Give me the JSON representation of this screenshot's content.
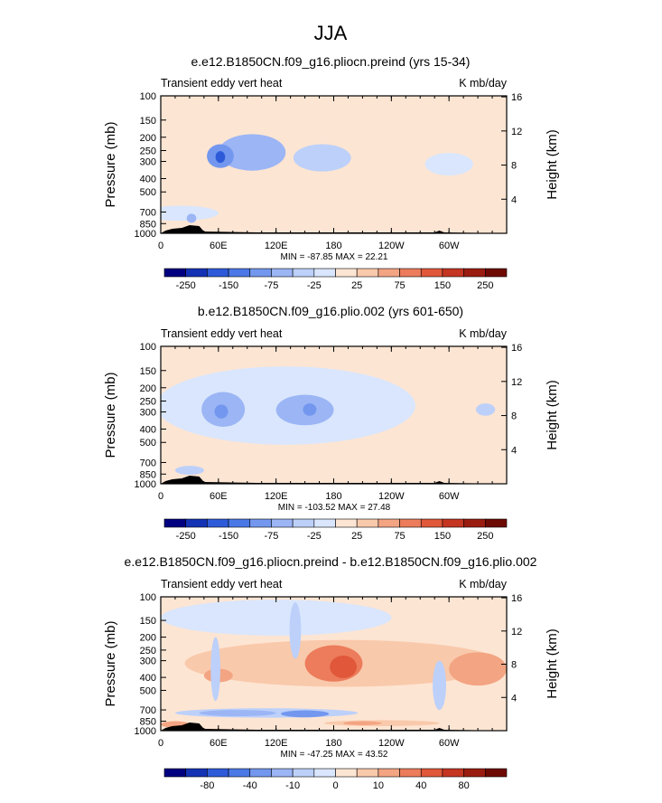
{
  "figure": {
    "title": "JJA"
  },
  "chart_data": [
    {
      "type": "heatmap",
      "title": "e.e12.B1850CN.f09_g16.pliocn.preind (yrs 15-34)",
      "subtitle_left": "Transient eddy vert heat",
      "subtitle_right": "K mb/day",
      "ylabel": "Pressure (mb)",
      "ylabel_right": "Height (km)",
      "x_ticks": [
        "0",
        "60E",
        "120E",
        "180",
        "120W",
        "60W"
      ],
      "y_ticks": [
        "100",
        "150",
        "200",
        "250",
        "300",
        "400",
        "500",
        "700",
        "850",
        "1000"
      ],
      "y_right_ticks": [
        "16",
        "12",
        "8",
        "4"
      ],
      "ylim": [
        1000,
        100
      ],
      "xlim": [
        0,
        360
      ],
      "stats": "MIN = -87.85   MAX =  22.21",
      "colorbar_labels": [
        "-250",
        "-150",
        "-75",
        "-25",
        "25",
        "75",
        "150",
        "250"
      ],
      "colorbar_colors": [
        "#000080",
        "#1432b4",
        "#2d5ad8",
        "#4a78e6",
        "#7397ee",
        "#9bb5f5",
        "#bcd0fa",
        "#d9e6fd",
        "#fde5d3",
        "#f9c9ab",
        "#f3a482",
        "#ec7c5b",
        "#e0573a",
        "#c43522",
        "#9a1c10",
        "#6e0a04"
      ],
      "blobs": [
        {
          "lon": 20,
          "lon_w": 80,
          "p": 720,
          "p_h": 180,
          "level": -1
        },
        {
          "lon": 95,
          "lon_w": 70,
          "p": 270,
          "p_h": 160,
          "level": -3
        },
        {
          "lon": 62,
          "lon_w": 28,
          "p": 280,
          "p_h": 110,
          "level": -4
        },
        {
          "lon": 62,
          "lon_w": 10,
          "p": 280,
          "p_h": 55,
          "level": -6
        },
        {
          "lon": 168,
          "lon_w": 60,
          "p": 290,
          "p_h": 130,
          "level": -2
        },
        {
          "lon": 300,
          "lon_w": 50,
          "p": 320,
          "p_h": 120,
          "level": -1
        },
        {
          "lon": 32,
          "lon_w": 10,
          "p": 780,
          "p_h": 120,
          "level": -3
        }
      ],
      "pos_blobs": [
        {
          "lon": 270,
          "lon_w": 180,
          "p": 580,
          "p_h": 300,
          "level": 1
        },
        {
          "lon": 200,
          "lon_w": 100,
          "p": 880,
          "p_h": 80,
          "level": 1
        }
      ],
      "background_level": 1
    },
    {
      "type": "heatmap",
      "title": "b.e12.B1850CN.f09_g16.plio.002 (yrs 601-650)",
      "subtitle_left": "Transient eddy vert heat",
      "subtitle_right": "K mb/day",
      "ylabel": "Pressure (mb)",
      "ylabel_right": "Height (km)",
      "x_ticks": [
        "0",
        "60E",
        "120E",
        "180",
        "120W",
        "60W"
      ],
      "y_ticks": [
        "100",
        "150",
        "200",
        "250",
        "300",
        "400",
        "500",
        "700",
        "850",
        "1000"
      ],
      "y_right_ticks": [
        "16",
        "12",
        "8",
        "4"
      ],
      "ylim": [
        1000,
        100
      ],
      "xlim": [
        0,
        360
      ],
      "stats": "MIN = -103.52   MAX =  27.48",
      "colorbar_labels": [
        "-250",
        "-150",
        "-75",
        "-25",
        "25",
        "75",
        "150",
        "250"
      ],
      "colorbar_colors": [
        "#000080",
        "#1432b4",
        "#2d5ad8",
        "#4a78e6",
        "#7397ee",
        "#9bb5f5",
        "#bcd0fa",
        "#d9e6fd",
        "#fde5d3",
        "#f9c9ab",
        "#f3a482",
        "#ec7c5b",
        "#e0573a",
        "#c43522",
        "#9a1c10",
        "#6e0a04"
      ],
      "blobs": [
        {
          "lon": 130,
          "lon_w": 270,
          "p": 330,
          "p_h": 380,
          "level": -1
        },
        {
          "lon": 65,
          "lon_w": 45,
          "p": 300,
          "p_h": 170,
          "level": -3
        },
        {
          "lon": 150,
          "lon_w": 60,
          "p": 300,
          "p_h": 150,
          "level": -3
        },
        {
          "lon": 63,
          "lon_w": 14,
          "p": 300,
          "p_h": 70,
          "level": -4
        },
        {
          "lon": 155,
          "lon_w": 14,
          "p": 290,
          "p_h": 60,
          "level": -4
        },
        {
          "lon": 30,
          "lon_w": 30,
          "p": 800,
          "p_h": 120,
          "level": -2
        },
        {
          "lon": 338,
          "lon_w": 20,
          "p": 290,
          "p_h": 60,
          "level": -2
        }
      ],
      "pos_blobs": [],
      "background_level": 1
    },
    {
      "type": "heatmap",
      "title": "e.e12.B1850CN.f09_g16.pliocn.preind - b.e12.B1850CN.f09_g16.plio.002",
      "subtitle_left": "Transient eddy vert heat",
      "subtitle_right": "K mb/day",
      "ylabel": "Pressure (mb)",
      "ylabel_right": "Height (km)",
      "x_ticks": [
        "0",
        "60E",
        "120E",
        "180",
        "120W",
        "60W"
      ],
      "y_ticks": [
        "100",
        "150",
        "200",
        "250",
        "300",
        "400",
        "500",
        "700",
        "850",
        "1000"
      ],
      "y_right_ticks": [
        "16",
        "12",
        "8",
        "4"
      ],
      "ylim": [
        1000,
        100
      ],
      "xlim": [
        0,
        360
      ],
      "stats": "MIN = -47.25   MAX =  43.52",
      "colorbar_labels": [
        "-80",
        "-40",
        "-10",
        "0",
        "10",
        "40",
        "80"
      ],
      "colorbar_colors": [
        "#000080",
        "#1432b4",
        "#2d5ad8",
        "#4a78e6",
        "#7397ee",
        "#9bb5f5",
        "#bcd0fa",
        "#d9e6fd",
        "#fde5d3",
        "#f9c9ab",
        "#f3a482",
        "#ec7c5b",
        "#e0573a",
        "#c43522",
        "#9a1c10",
        "#6e0a04"
      ],
      "blobs": [
        {
          "lon": 120,
          "lon_w": 240,
          "p": 150,
          "p_h": 90,
          "level": -1
        },
        {
          "lon": 110,
          "lon_w": 190,
          "p": 740,
          "p_h": 120,
          "level": -2
        },
        {
          "lon": 80,
          "lon_w": 80,
          "p": 740,
          "p_h": 80,
          "level": -3
        },
        {
          "lon": 150,
          "lon_w": 50,
          "p": 750,
          "p_h": 90,
          "level": -4
        },
        {
          "lon": 57,
          "lon_w": 10,
          "p": 400,
          "p_h": 400,
          "level": -2
        },
        {
          "lon": 140,
          "lon_w": 12,
          "p": 200,
          "p_h": 180,
          "level": -2
        },
        {
          "lon": 290,
          "lon_w": 14,
          "p": 500,
          "p_h": 400,
          "level": -2
        }
      ],
      "pos_blobs": [
        {
          "lon": 190,
          "lon_w": 330,
          "p": 340,
          "p_h": 260,
          "level": 2
        },
        {
          "lon": 180,
          "lon_w": 60,
          "p": 330,
          "p_h": 200,
          "level": 4
        },
        {
          "lon": 190,
          "lon_w": 28,
          "p": 340,
          "p_h": 130,
          "level": 5
        },
        {
          "lon": 60,
          "lon_w": 30,
          "p": 390,
          "p_h": 90,
          "level": 3
        },
        {
          "lon": 330,
          "lon_w": 60,
          "p": 360,
          "p_h": 200,
          "level": 3
        },
        {
          "lon": 230,
          "lon_w": 120,
          "p": 880,
          "p_h": 90,
          "level": 2
        },
        {
          "lon": 210,
          "lon_w": 40,
          "p": 880,
          "p_h": 60,
          "level": 3
        },
        {
          "lon": 15,
          "lon_w": 30,
          "p": 900,
          "p_h": 100,
          "level": 3
        }
      ],
      "background_level": 1
    }
  ]
}
